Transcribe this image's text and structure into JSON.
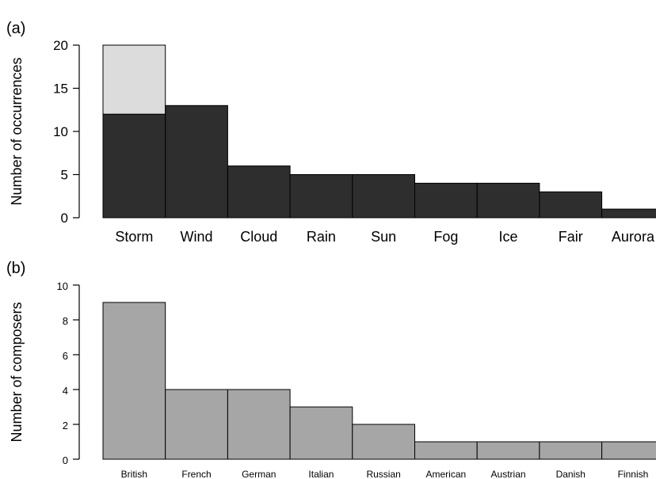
{
  "chart_data": [
    {
      "panel_label": "(a)",
      "type": "bar",
      "stacked": true,
      "ylabel": "Number of occurrences",
      "ylim": [
        0,
        20
      ],
      "yticks": [
        0,
        5,
        10,
        15,
        20
      ],
      "categories": [
        "Storm",
        "Wind",
        "Cloud",
        "Rain",
        "Sun",
        "Fog",
        "Ice",
        "Fair",
        "Aurora"
      ],
      "series": [
        {
          "values": [
            12,
            13,
            6,
            5,
            5,
            4,
            4,
            3,
            1
          ],
          "color": "#2e2e2e"
        },
        {
          "values": [
            8,
            0,
            0,
            0,
            0,
            0,
            0,
            0,
            0
          ],
          "color": "#dcdcdc"
        }
      ],
      "grid": false
    },
    {
      "panel_label": "(b)",
      "type": "bar",
      "ylabel": "Number of composers",
      "ylim": [
        0,
        10
      ],
      "yticks": [
        0,
        2,
        4,
        6,
        8,
        10
      ],
      "categories": [
        "British",
        "French",
        "German",
        "Italian",
        "Russian",
        "American",
        "Austrian",
        "Danish",
        "Finnish"
      ],
      "series": [
        {
          "values": [
            9,
            4,
            4,
            3,
            2,
            1,
            1,
            1,
            1
          ],
          "color": "#a6a6a6"
        }
      ],
      "grid": false
    }
  ]
}
